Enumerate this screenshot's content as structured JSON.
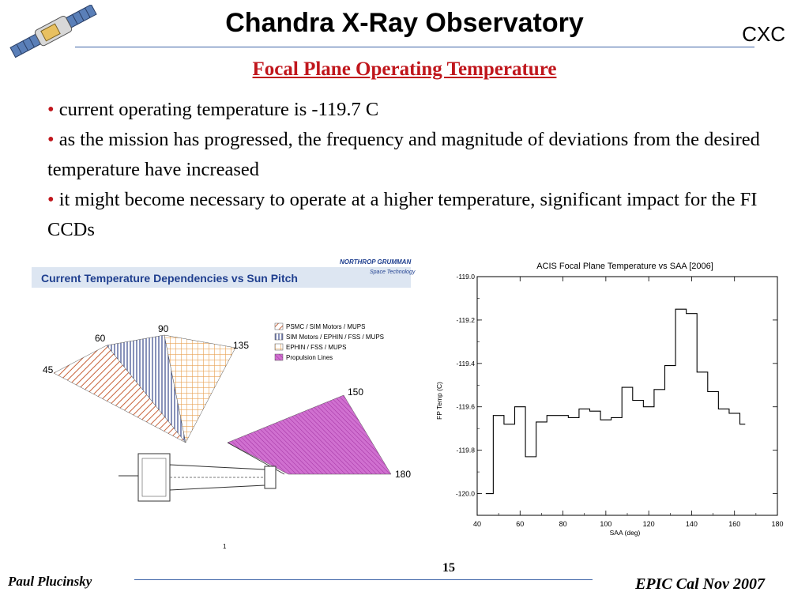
{
  "header": {
    "title": "Chandra X-Ray Observatory",
    "org": "CXC",
    "subtitle": "Focal Plane Operating Temperature",
    "logo_icon": "satellite-icon"
  },
  "bullets": [
    "current operating temperature is -119.7 C",
    "as the mission has progressed, the frequency and magnitude of deviations from the desired temperature have increased",
    "it might become necessary to operate at a higher temperature, significant impact for the FI CCDs"
  ],
  "left_figure": {
    "title": "Current Temperature Dependencies vs Sun Pitch",
    "company": "NORTHROP GRUMMAN",
    "company_sub": "Space Technology",
    "angles": [
      "45",
      "60",
      "90",
      "135",
      "150",
      "180"
    ],
    "legend": [
      {
        "label": "PSMC / SIM Motors / MUPS",
        "color": "#c8643c"
      },
      {
        "label": "SIM Motors / EPHIN / FSS / MUPS",
        "color": "#3a4a8c"
      },
      {
        "label": "EPHIN / FSS / MUPS",
        "color": "#e8a050"
      },
      {
        "label": "Propulsion Lines",
        "color": "#c050c0"
      }
    ],
    "marker": "1"
  },
  "chart_data": {
    "type": "line",
    "title": "ACIS Focal Plane Temperature vs SAA [2006]",
    "xlabel": "SAA (deg)",
    "ylabel": "FP Temp (C)",
    "xlim": [
      40,
      180
    ],
    "ylim": [
      -120.1,
      -119.0
    ],
    "y_inverted": true,
    "step": true,
    "xticks": [
      40,
      60,
      80,
      100,
      120,
      140,
      160,
      180
    ],
    "yticks": [
      -119.0,
      -119.2,
      -119.4,
      -119.6,
      -119.8,
      -120.0
    ],
    "ytick_labels": [
      "-119.0",
      "-119.2",
      "-119.4",
      "-119.6",
      "-119.8",
      "-120.0"
    ],
    "series": [
      {
        "x": [
          45,
          50,
          55,
          60,
          65,
          70,
          75,
          80,
          85,
          90,
          95,
          100,
          105,
          110,
          115,
          120,
          125,
          130,
          135,
          140,
          145,
          150,
          155,
          160,
          165
        ],
        "y": [
          -120.0,
          -119.64,
          -119.68,
          -119.6,
          -119.83,
          -119.67,
          -119.64,
          -119.64,
          -119.65,
          -119.61,
          -119.62,
          -119.66,
          -119.65,
          -119.51,
          -119.57,
          -119.6,
          -119.52,
          -119.41,
          -119.15,
          -119.17,
          -119.44,
          -119.53,
          -119.61,
          -119.63,
          -119.68
        ]
      }
    ]
  },
  "footer": {
    "author": "Paul Plucinsky",
    "page": "15",
    "event": "EPIC Cal Nov 2007"
  }
}
